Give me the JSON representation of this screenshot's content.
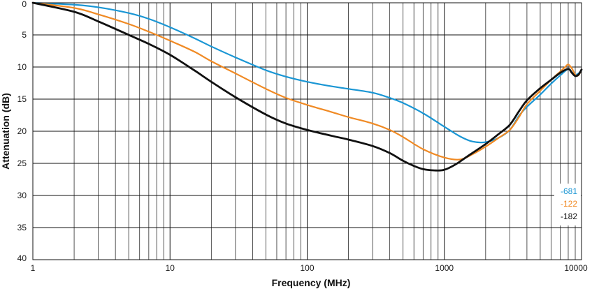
{
  "chart_data": {
    "type": "line",
    "xlabel": "Frequency (MHz)",
    "ylabel": "Attenuation (dB)",
    "x_scale": "log",
    "xlim": [
      1,
      10000
    ],
    "ylim": [
      0,
      40
    ],
    "y_inverted": true,
    "grid": true,
    "legend_position": "bottom-right",
    "x_tick_labels": [
      "1",
      "10",
      "100",
      "1000",
      "10000"
    ],
    "y_tick_labels": [
      "0",
      "5",
      "10",
      "15",
      "20",
      "25",
      "30",
      "35",
      "40"
    ],
    "series": [
      {
        "name": "-681",
        "color": "#1a96d4",
        "x": [
          1,
          2,
          3,
          5,
          7,
          10,
          15,
          20,
          30,
          50,
          70,
          100,
          150,
          200,
          300,
          400,
          500,
          700,
          1000,
          1300,
          1600,
          2000,
          2500,
          3000,
          3500,
          4000,
          5000,
          6000,
          7000,
          8000,
          8500,
          9000,
          9500,
          10000
        ],
        "y": [
          0.0,
          0.3,
          0.7,
          1.6,
          2.5,
          3.8,
          5.5,
          6.8,
          8.5,
          10.5,
          11.5,
          12.3,
          13.0,
          13.4,
          14.0,
          14.8,
          15.6,
          17.2,
          19.3,
          20.8,
          21.6,
          21.7,
          21.0,
          19.8,
          17.6,
          16.2,
          14.3,
          12.6,
          11.3,
          10.3,
          10.8,
          11.2,
          11.0,
          10.5
        ]
      },
      {
        "name": "-122",
        "color": "#f08a24",
        "x": [
          1,
          2,
          3,
          5,
          7,
          10,
          15,
          20,
          30,
          50,
          70,
          100,
          150,
          200,
          300,
          400,
          500,
          700,
          1000,
          1300,
          1600,
          2000,
          2500,
          3000,
          3500,
          4000,
          5000,
          6000,
          7000,
          7600,
          8000,
          8500,
          9000,
          9500,
          10000
        ],
        "y": [
          0.0,
          0.8,
          1.8,
          3.3,
          4.5,
          5.9,
          7.6,
          9.1,
          11.0,
          13.4,
          14.8,
          15.9,
          17.0,
          17.8,
          18.8,
          19.8,
          20.9,
          22.8,
          24.1,
          24.4,
          23.6,
          22.4,
          21.0,
          19.8,
          17.8,
          15.8,
          13.7,
          12.0,
          10.7,
          10.0,
          9.6,
          10.2,
          11.2,
          11.3,
          10.4
        ]
      },
      {
        "name": "-182",
        "color": "#111111",
        "x": [
          1,
          2,
          3,
          5,
          7,
          10,
          15,
          20,
          30,
          50,
          70,
          100,
          150,
          200,
          300,
          400,
          500,
          600,
          700,
          850,
          1000,
          1200,
          1500,
          2000,
          2500,
          3000,
          3500,
          4000,
          5000,
          6000,
          7000,
          8000,
          8500,
          9000,
          9500,
          10000
        ],
        "y": [
          0.0,
          1.4,
          2.9,
          5.0,
          6.4,
          8.1,
          10.5,
          12.3,
          14.7,
          17.4,
          18.8,
          19.8,
          20.7,
          21.3,
          22.3,
          23.4,
          24.6,
          25.4,
          25.9,
          26.1,
          26.0,
          25.2,
          23.8,
          22.0,
          20.4,
          19.0,
          16.9,
          15.2,
          13.3,
          12.0,
          10.9,
          10.3,
          10.9,
          11.4,
          11.2,
          10.4
        ]
      }
    ]
  }
}
